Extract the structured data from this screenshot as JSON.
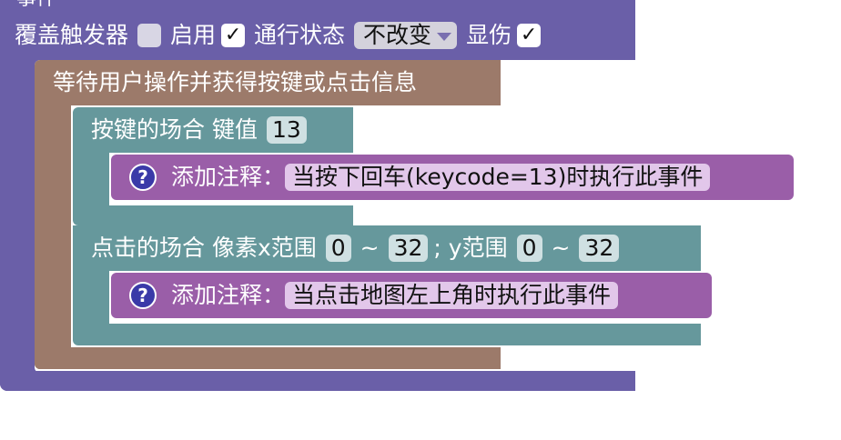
{
  "top_block": {
    "fragment": "事件",
    "override_trigger_label": "覆盖触发器",
    "override_trigger_checked": false,
    "enable_label": "启用",
    "enable_checked": true,
    "pass_state_label": "通行状态",
    "pass_state_value": "不改变",
    "show_damage_label": "显伤",
    "show_damage_checked": true,
    "check_mark": "✓"
  },
  "wait_block": {
    "label": "等待用户操作并获得按键或点击信息"
  },
  "key_case": {
    "label": "按键的场合 键值",
    "keycode": "13",
    "comment_label": "添加注释：",
    "comment_text": "当按下回车(keycode=13)时执行此事件"
  },
  "click_case": {
    "label": "点击的场合 像素x范围",
    "x_min": "0",
    "tilde": "~",
    "x_max": "32",
    "y_label": "; y范围",
    "y_min": "0",
    "y_max": "32",
    "comment_label": "添加注释：",
    "comment_text": "当点击地图左上角时执行此事件"
  },
  "help_icon": "?",
  "colors": {
    "purple": "#6a5fa8",
    "brown": "#9c7a6a",
    "teal": "#66989c",
    "violet": "#9a5ea8"
  }
}
